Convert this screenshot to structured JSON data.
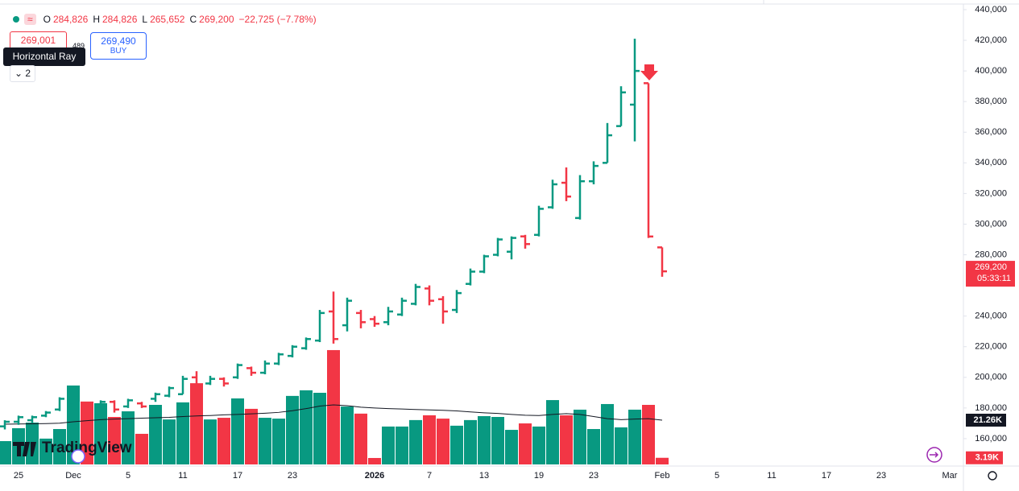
{
  "legend": {
    "open_label": "O",
    "open": "284,826",
    "high_label": "H",
    "high": "284,826",
    "low_label": "L",
    "low": "265,652",
    "close_label": "C",
    "close": "269,200",
    "change": "−22,725 (−7.78%)"
  },
  "order": {
    "sell": "269,001",
    "spread": "489",
    "buy_price": "269,490",
    "buy": "BUY"
  },
  "tooltip": "Horizontal Ray",
  "collapsed_count": "2",
  "logo": "TradingView",
  "chart_data": {
    "type": "ohlc",
    "up_color": "#089981",
    "down_color": "#f23645",
    "ma_color": "#131722",
    "grid": false,
    "categories": [
      null,
      "25",
      null,
      null,
      null,
      "Dec",
      null,
      null,
      null,
      "5",
      null,
      null,
      null,
      "11",
      null,
      null,
      null,
      "17",
      null,
      null,
      null,
      "23",
      null,
      null,
      null,
      null,
      null,
      "2026",
      null,
      null,
      null,
      "7",
      null,
      null,
      null,
      "13",
      null,
      null,
      null,
      "19",
      null,
      null,
      null,
      "23",
      null,
      null,
      null,
      null,
      "Feb",
      null,
      null,
      null,
      "5",
      null,
      null,
      null,
      "11",
      null,
      null,
      null,
      "17",
      null,
      null,
      null,
      "23",
      null,
      null,
      null,
      null,
      "Mar"
    ],
    "open": [
      168000,
      171000,
      172000,
      175000,
      179000,
      182000,
      183000,
      181000,
      184000,
      181000,
      183000,
      186000,
      188000,
      189000,
      200000,
      196000,
      199000,
      200000,
      206000,
      203000,
      209000,
      214000,
      219000,
      224000,
      243000,
      234000,
      242000,
      238000,
      236000,
      241000,
      248000,
      258000,
      251000,
      244000,
      261000,
      269000,
      280000,
      282000,
      292000,
      293000,
      311000,
      327000,
      304000,
      328000,
      340000,
      364000,
      378000,
      392000,
      284826,
      null,
      null,
      null,
      null,
      null,
      null,
      null,
      null,
      null,
      null,
      null,
      null,
      null,
      null,
      null,
      null,
      null,
      null,
      null,
      null,
      null
    ],
    "high": [
      172000,
      175000,
      175000,
      178000,
      187000,
      189000,
      184000,
      185000,
      185000,
      186000,
      184000,
      190000,
      194000,
      201000,
      204000,
      201000,
      200000,
      209000,
      207000,
      211000,
      216000,
      221000,
      226000,
      244000,
      256000,
      252000,
      244000,
      240000,
      246000,
      252000,
      261000,
      260000,
      253000,
      257000,
      271000,
      280000,
      291000,
      292000,
      293000,
      312000,
      329000,
      337000,
      332000,
      341000,
      366000,
      390000,
      421000,
      392000,
      284826,
      null,
      null,
      null,
      null,
      null,
      null,
      null,
      null,
      null,
      null,
      null,
      null,
      null,
      null,
      null,
      null,
      null,
      null,
      null,
      null,
      null
    ],
    "low": [
      166000,
      169000,
      170000,
      174000,
      178000,
      180000,
      180000,
      180000,
      177000,
      180000,
      180000,
      184000,
      187000,
      189000,
      188000,
      195000,
      194000,
      199000,
      201000,
      202000,
      208000,
      213000,
      218000,
      223000,
      222000,
      230000,
      232000,
      233000,
      234000,
      240000,
      247000,
      247000,
      235000,
      242000,
      260000,
      268000,
      279000,
      277000,
      284000,
      292000,
      310000,
      315000,
      303000,
      326000,
      340000,
      364000,
      354000,
      291000,
      265652,
      null,
      null,
      null,
      null,
      null,
      null,
      null,
      null,
      null,
      null,
      null,
      null,
      null,
      null,
      null,
      null,
      null,
      null,
      null,
      null,
      null
    ],
    "close": [
      171000,
      174000,
      174000,
      177000,
      186000,
      187000,
      181000,
      184000,
      179000,
      185000,
      181000,
      189000,
      193000,
      199000,
      190000,
      199000,
      196000,
      208000,
      203000,
      209000,
      215000,
      220000,
      225000,
      242000,
      225000,
      250000,
      236000,
      235000,
      243000,
      250000,
      259000,
      250000,
      243000,
      255000,
      269000,
      279000,
      290000,
      291000,
      287000,
      310000,
      326000,
      318000,
      328000,
      338000,
      358000,
      386000,
      400000,
      291925,
      269200,
      null,
      null,
      null,
      null,
      null,
      null,
      null,
      null,
      null,
      null,
      null,
      null,
      null,
      null,
      null,
      null,
      null,
      null,
      null,
      null,
      null
    ],
    "volume": [
      11200,
      17400,
      20100,
      12400,
      17000,
      37900,
      30200,
      29400,
      22800,
      25500,
      14700,
      28600,
      21600,
      29800,
      39000,
      21600,
      22400,
      31700,
      26700,
      22400,
      22000,
      32900,
      35600,
      34400,
      54900,
      27800,
      24400,
      3100,
      18200,
      18200,
      21300,
      23600,
      22000,
      18600,
      21300,
      23200,
      22800,
      16600,
      19700,
      18200,
      30900,
      23600,
      26300,
      17000,
      29000,
      17800,
      26300,
      28600,
      3190,
      null,
      null,
      null,
      null,
      null,
      null,
      null,
      null,
      null,
      null,
      null,
      null,
      null,
      null,
      null,
      null,
      null,
      null,
      null,
      null,
      null
    ],
    "volume_ma": [
      19300,
      19400,
      19500,
      19600,
      19800,
      20500,
      21000,
      21500,
      21800,
      22000,
      22200,
      22400,
      22600,
      23000,
      23300,
      23500,
      23800,
      24000,
      24300,
      24600,
      25000,
      25800,
      26800,
      28000,
      28600,
      28200,
      27500,
      27100,
      26800,
      26600,
      26400,
      26200,
      26000,
      25700,
      25200,
      24800,
      24500,
      24000,
      23600,
      23500,
      24000,
      24400,
      24000,
      23000,
      22000,
      21500,
      21800,
      22000,
      21260,
      null,
      null,
      null,
      null,
      null,
      null,
      null,
      null,
      null,
      null,
      null,
      null,
      null,
      null,
      null,
      null,
      null,
      null,
      null,
      null,
      null
    ],
    "ylim": [
      143150,
      446300
    ],
    "volume_ylim": [
      0,
      223000
    ],
    "yticks": [
      {
        "value": 160000,
        "label": "160,000"
      },
      {
        "value": 180000,
        "label": "180,000"
      },
      {
        "value": 200000,
        "label": "200,000"
      },
      {
        "value": 220000,
        "label": "220,000"
      },
      {
        "value": 240000,
        "label": "240,000"
      },
      {
        "value": 280000,
        "label": "280,000"
      },
      {
        "value": 300000,
        "label": "300,000"
      },
      {
        "value": 320000,
        "label": "320,000"
      },
      {
        "value": 340000,
        "label": "340,000"
      },
      {
        "value": 360000,
        "label": "360,000"
      },
      {
        "value": 380000,
        "label": "380,000"
      },
      {
        "value": 400000,
        "label": "400,000"
      },
      {
        "value": 420000,
        "label": "420,000"
      },
      {
        "value": 440000,
        "label": "440,000"
      }
    ],
    "last_price": {
      "value": 269200,
      "label": "269,200"
    },
    "countdown": "05:33:11",
    "ma_last": {
      "value": 21260,
      "label": "21.26K"
    },
    "volume_last": {
      "value": 3190,
      "label": "3.19K"
    }
  }
}
